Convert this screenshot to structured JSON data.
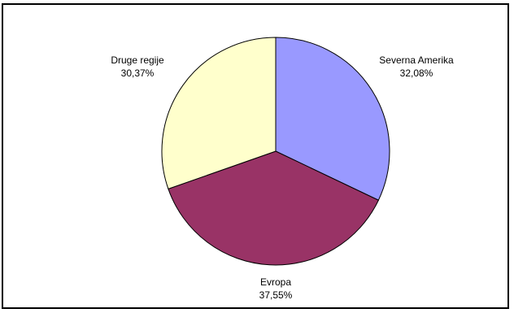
{
  "chart_data": {
    "type": "pie",
    "title": "",
    "slices": [
      {
        "label": "Severna Amerika",
        "value_label": "32,08%",
        "value": 32.08,
        "color": "#9999FF"
      },
      {
        "label": "Evropa",
        "value_label": "37,55%",
        "value": 37.55,
        "color": "#993366"
      },
      {
        "label": "Druge regije",
        "value_label": "30,37%",
        "value": 30.37,
        "color": "#FFFFCC"
      }
    ],
    "start_angle_deg": 0,
    "direction": "clockwise",
    "legend": "none",
    "data_labels": "outside"
  }
}
